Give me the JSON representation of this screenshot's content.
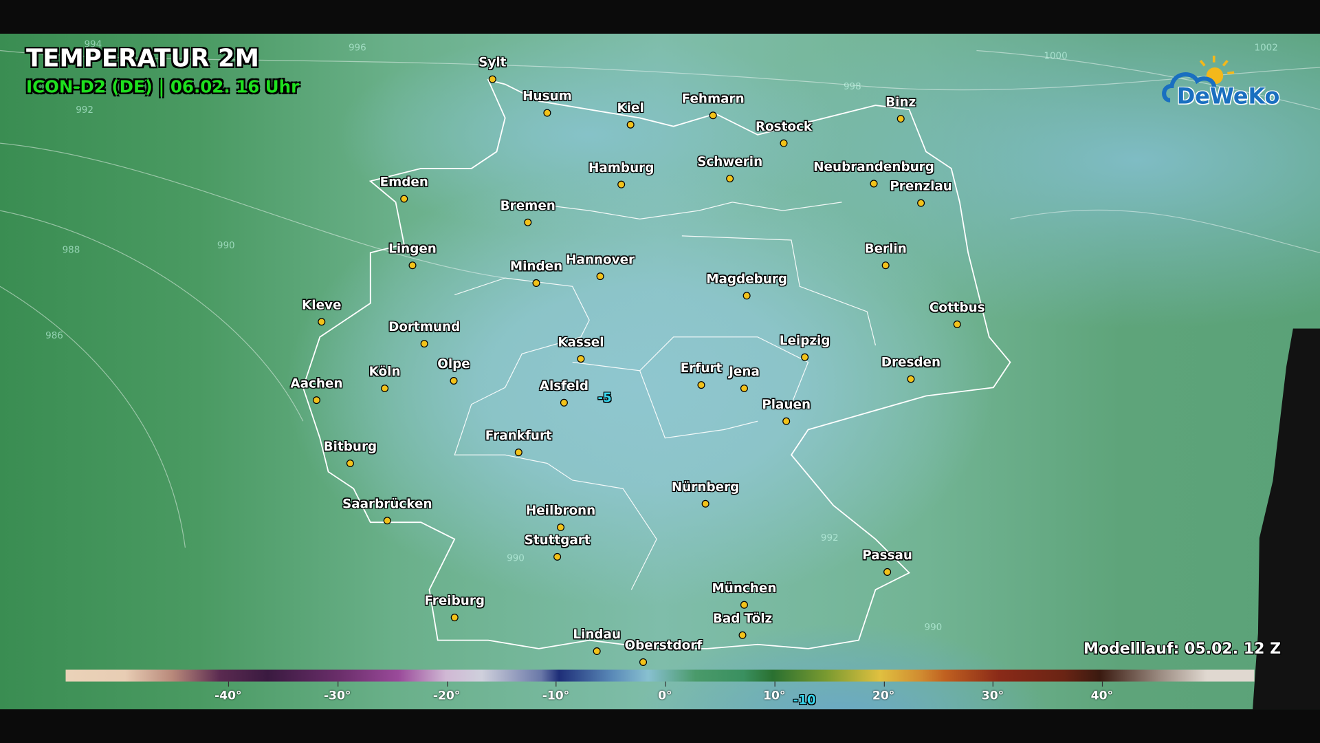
{
  "title": "TEMPERATUR 2M",
  "subtitle": "ICON-D2 (DE) | 06.02. 16 Uhr",
  "model_run": "Modelllauf: 05.02. 12 Z",
  "logo": {
    "text": "DeWeKo",
    "brand_color": "#1a6fc0"
  },
  "cities": [
    "Sylt",
    "Husum",
    "Kiel",
    "Fehmarn",
    "Rostock",
    "Binz",
    "Schwerin",
    "Neubrandenburg",
    "Prenzlau",
    "Hamburg",
    "Emden",
    "Bremen",
    "Lingen",
    "Minden",
    "Hannover",
    "Magdeburg",
    "Berlin",
    "Kleve",
    "Dortmund",
    "Kassel",
    "Leipzig",
    "Cottbus",
    "Köln",
    "Olpe",
    "Aachen",
    "Alsfeld",
    "Erfurt",
    "Jena",
    "Dresden",
    "Plauen",
    "Frankfurt",
    "Bitburg",
    "Nürnberg",
    "Saarbrücken",
    "Heilbronn",
    "Stuttgart",
    "Passau",
    "München",
    "Bad Tölz",
    "Freiburg",
    "Lindau",
    "Oberstdorf"
  ],
  "temperature_labels": [
    "-5",
    "-10"
  ],
  "isobar_labels": [
    "994",
    "996",
    "998",
    "1000",
    "1002",
    "992",
    "990",
    "988",
    "986",
    "992",
    "990",
    "990"
  ],
  "colorbar": {
    "unit": "°C",
    "ticks": [
      "-40°",
      "-30°",
      "-20°",
      "-10°",
      "0°",
      "10°",
      "20°",
      "30°",
      "40°"
    ],
    "range": [
      -55,
      54
    ]
  }
}
